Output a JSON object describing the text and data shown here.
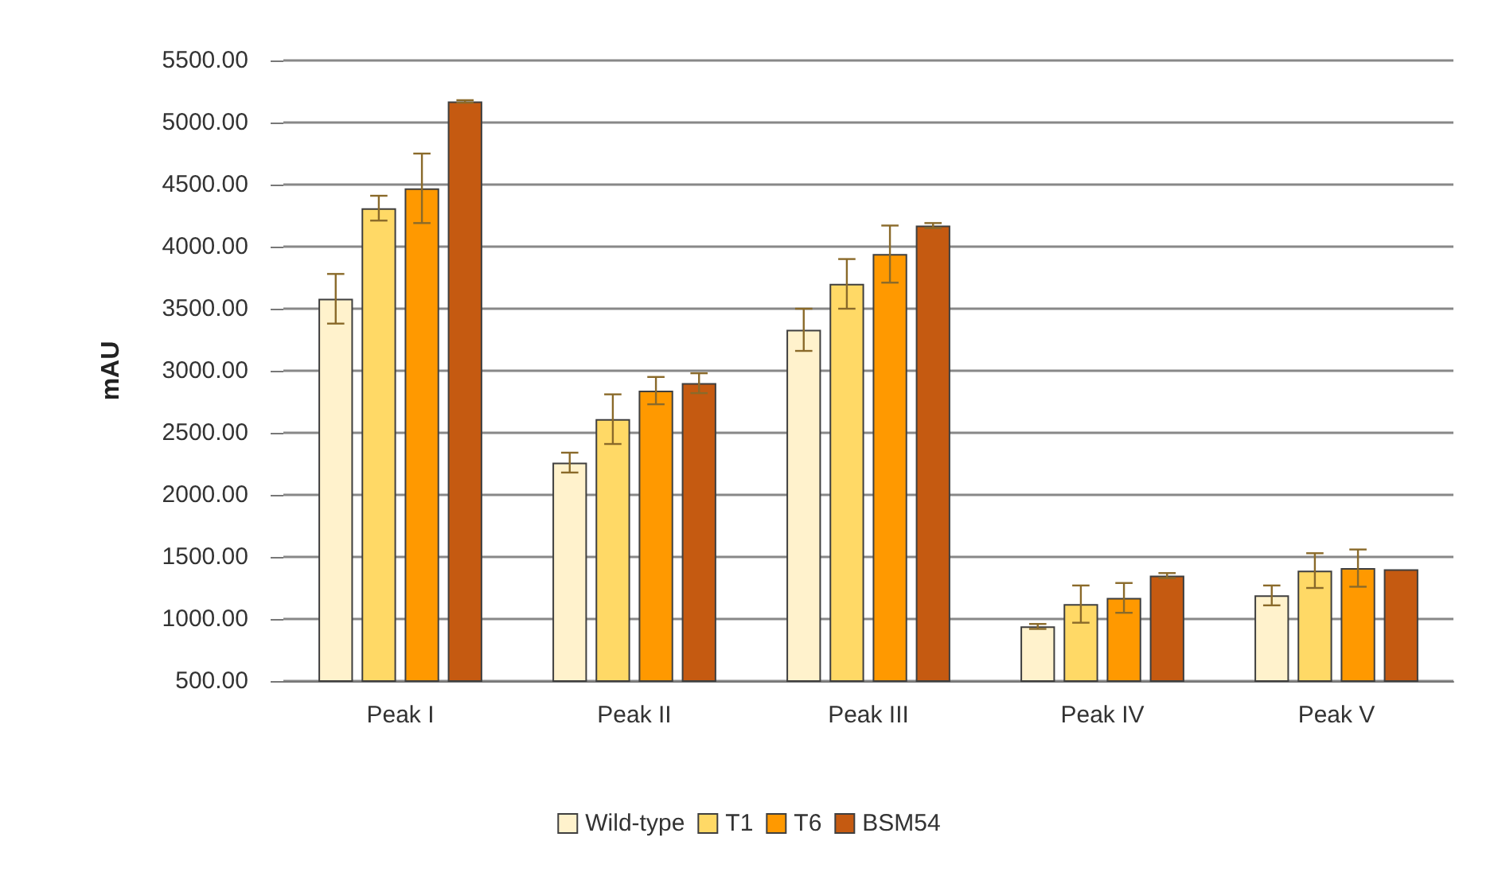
{
  "chart_data": {
    "type": "bar",
    "ylabel": "mAU",
    "categories": [
      "Peak I",
      "Peak II",
      "Peak III",
      "Peak IV",
      "Peak V"
    ],
    "series": [
      {
        "name": "Wild-type",
        "color": "#fff2cc",
        "values": [
          3580,
          2260,
          3330,
          940,
          1190
        ],
        "errors": [
          200,
          80,
          170,
          20,
          80
        ]
      },
      {
        "name": "T1",
        "color": "#ffd966",
        "values": [
          4310,
          2610,
          3700,
          1120,
          1390
        ],
        "errors": [
          100,
          200,
          200,
          150,
          140
        ]
      },
      {
        "name": "T6",
        "color": "#ff9900",
        "values": [
          4470,
          2840,
          3940,
          1170,
          1410
        ],
        "errors": [
          280,
          110,
          230,
          120,
          150
        ]
      },
      {
        "name": "BSM54",
        "color": "#c55a11",
        "values": [
          5170,
          2900,
          4170,
          1350,
          1400
        ],
        "errors": [
          10,
          80,
          20,
          20,
          null
        ]
      }
    ],
    "ylim": [
      500,
      5500
    ],
    "yticks": [
      {
        "value": 500,
        "label": "500.00"
      },
      {
        "value": 1000,
        "label": "1000.00"
      },
      {
        "value": 1500,
        "label": "1500.00"
      },
      {
        "value": 2000,
        "label": "2000.00"
      },
      {
        "value": 2500,
        "label": "2500.00"
      },
      {
        "value": 3000,
        "label": "3000.00"
      },
      {
        "value": 3500,
        "label": "3500.00"
      },
      {
        "value": 4000,
        "label": "4000.00"
      },
      {
        "value": 4500,
        "label": "4500.00"
      },
      {
        "value": 5000,
        "label": "5000.00"
      },
      {
        "value": 5500,
        "label": "5500.00"
      }
    ],
    "grid": "y",
    "legend": "bottom"
  }
}
